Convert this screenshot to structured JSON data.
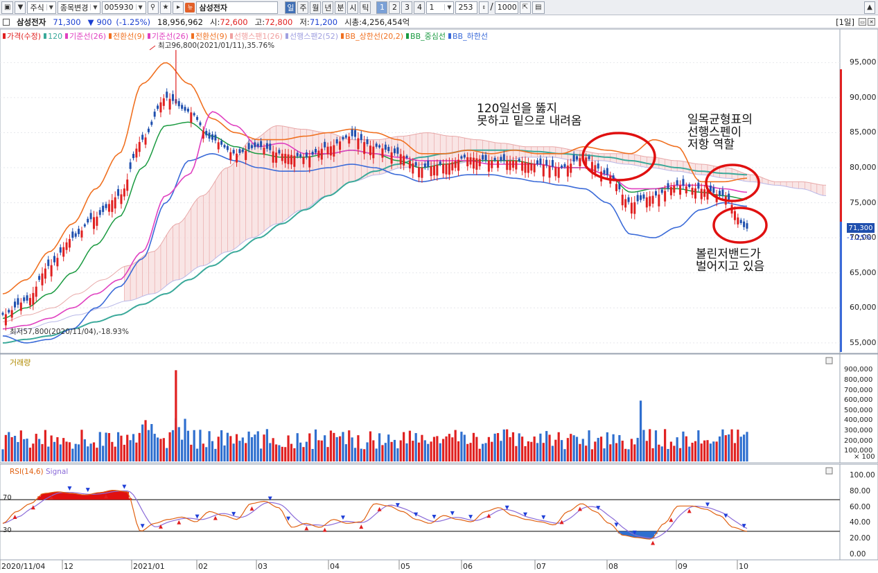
{
  "toolbar": {
    "market": "주식",
    "change_symbol": "종목변경",
    "code": "005930",
    "stock_name": "삼성전자",
    "new_badge": "뉴",
    "periods": [
      "일",
      "주",
      "월",
      "년",
      "분",
      "시",
      "틱"
    ],
    "active_period": "일",
    "numbers": [
      "1",
      "2",
      "3",
      "4"
    ],
    "active_number": "1",
    "interval": "1",
    "count": "253",
    "separator": "/",
    "max_count": "1000"
  },
  "info": {
    "name": "삼성전자",
    "price": "71,300",
    "change_arrow": "▼",
    "change": "900",
    "change_pct": "(-1.25%)",
    "volume": "18,956,962",
    "open_label": "시:",
    "open": "72,600",
    "high_label": "고:",
    "high": "72,800",
    "low_label": "저:",
    "low": "71,200",
    "mcap_label": "시총:",
    "mcap": "4,256,454억",
    "period_tag": "[1일]"
  },
  "price_panel": {
    "legend": [
      {
        "label": "가격(수정)",
        "color": "#e02020"
      },
      {
        "label": "120",
        "color": "#3aa99a"
      },
      {
        "label": "기준선(26)",
        "color": "#e040c0"
      },
      {
        "label": "전환선(9)",
        "color": "#f07020"
      },
      {
        "label": "기준선(26)",
        "color": "#e040c0"
      },
      {
        "label": "전환선(9)",
        "color": "#f07020"
      },
      {
        "label": "선행스팬1(26)",
        "color": "#f0a0a0"
      },
      {
        "label": "선행스팬2(52)",
        "color": "#a0a0e0"
      },
      {
        "label": "BB_상한선(20,2)",
        "color": "#f07020"
      },
      {
        "label": "BB_중심선",
        "color": "#1a9a40"
      },
      {
        "label": "BB_하한선",
        "color": "#3a6ad8"
      }
    ],
    "high_marker": "최고96,800(2021/01/11),35.76%",
    "low_marker": "최저57,800(2020/11/04),-18.93%",
    "y_ticks": [
      "95,000",
      "90,000",
      "85,000",
      "80,000",
      "75,000",
      "70,000",
      "65,000",
      "60,000",
      "55,000"
    ],
    "current_price_tag": "71,300",
    "current_change_tag": "-1.25%"
  },
  "annotations": {
    "note1": "120일선을 뚫지\n못하고 밑으로 내려옴",
    "note2": "일목균형표의\n선행스펜이\n저항 역할",
    "note3": "볼린저밴드가\n벌어지고 있음"
  },
  "volume_panel": {
    "legend": "거래량",
    "y_ticks": [
      "900,000",
      "800,000",
      "700,000",
      "600,000",
      "500,000",
      "400,000",
      "300,000",
      "200,000",
      "100,000"
    ],
    "unit": "× 100"
  },
  "rsi_panel": {
    "legend_rsi": "RSI(14,6)",
    "legend_signal": "Signal",
    "y_ticks": [
      "100.00",
      "80.00",
      "60.00",
      "40.00",
      "20.00",
      "0.00"
    ],
    "level_high": "70",
    "level_low": "30"
  },
  "x_axis": [
    "2020/11/04",
    "12",
    "2021/01",
    "02",
    "03",
    "04",
    "05",
    "06",
    "07",
    "08",
    "09",
    "10"
  ],
  "chart_data": {
    "type": "line",
    "title": "",
    "x": [
      "2020/11",
      "2020/12",
      "2021/01",
      "2021/02",
      "2021/03",
      "2021/04",
      "2021/05",
      "2021/06",
      "2021/07",
      "2021/08",
      "2021/09",
      "2021/10"
    ],
    "series": [
      {
        "name": "가격(수정)",
        "values": [
          59000,
          68000,
          87000,
          83000,
          82000,
          84000,
          80000,
          81000,
          80000,
          81000,
          76000,
          71300
        ]
      },
      {
        "name": "120",
        "values": [
          56000,
          58000,
          62000,
          66000,
          70000,
          74000,
          78000,
          81000,
          82500,
          82000,
          80000,
          79000
        ]
      },
      {
        "name": "BB_상한선",
        "values": [
          62000,
          72000,
          94000,
          88000,
          84000,
          85500,
          84000,
          82000,
          82000,
          82500,
          83000,
          78000
        ]
      },
      {
        "name": "BB_하한선",
        "values": [
          57000,
          55000,
          66000,
          81000,
          80000,
          80000,
          77500,
          79000,
          79000,
          78500,
          70000,
          74500
        ]
      }
    ],
    "volume_x100": [
      180000,
      220000,
      900000,
      220000,
      210000,
      280000,
      200000,
      190000,
      180000,
      600000,
      200000,
      180000
    ],
    "rsi": [
      55,
      78,
      80,
      40,
      45,
      62,
      38,
      55,
      45,
      62,
      18,
      30
    ],
    "ylim": [
      54000,
      98000
    ]
  }
}
